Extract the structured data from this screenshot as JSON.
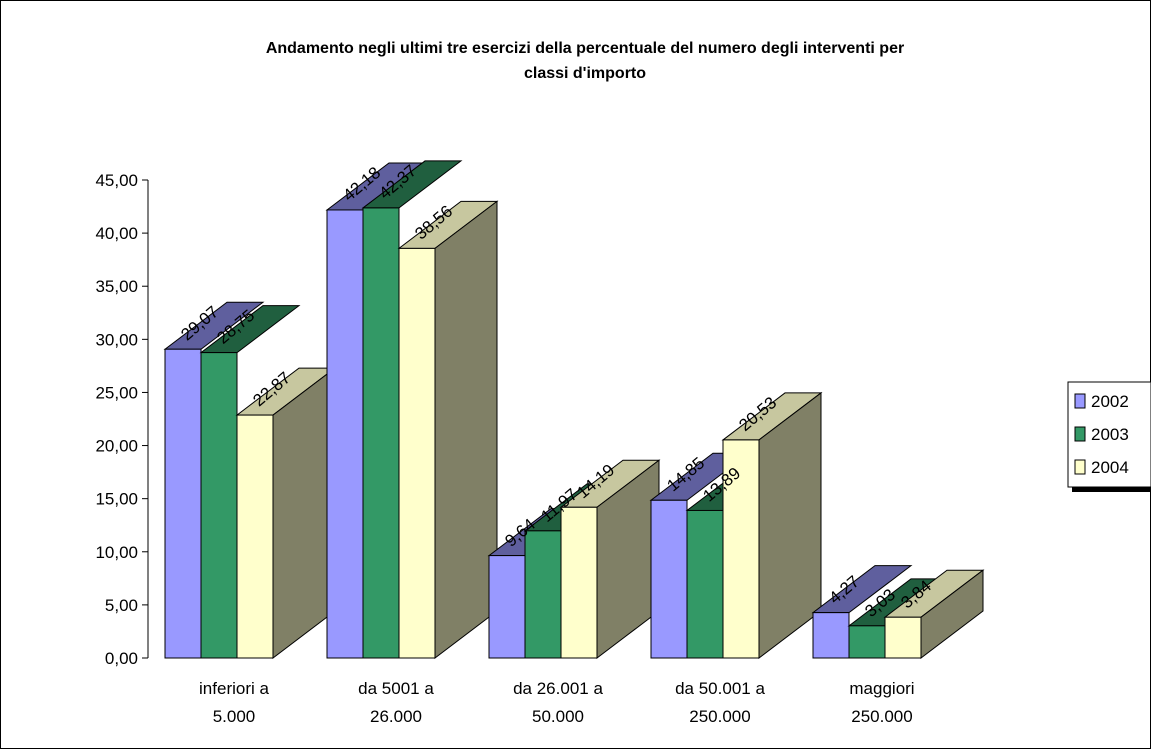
{
  "chart_data": {
    "type": "bar",
    "title_line1": "Andamento negli ultimi tre esercizi della percentuale del numero degli interventi per",
    "title_line2": "classi d'importo",
    "categories": [
      [
        "inferiori a",
        "5.000"
      ],
      [
        "da 5001 a",
        "26.000"
      ],
      [
        "da 26.001 a",
        "50.000"
      ],
      [
        "da 50.001 a",
        "250.000"
      ],
      [
        "maggiori",
        "250.000"
      ]
    ],
    "series": [
      {
        "name": "2002",
        "values": [
          29.07,
          42.18,
          9.64,
          14.85,
          4.27
        ],
        "labels": [
          "29,07",
          "42,18",
          "9,64",
          "14,85",
          "4,27"
        ],
        "color": "#9999ff"
      },
      {
        "name": "2003",
        "values": [
          28.75,
          42.37,
          11.97,
          13.89,
          3.03
        ],
        "labels": [
          "28,75",
          "42,37",
          "11,97",
          "13,89",
          "3,03"
        ],
        "color": "#339966"
      },
      {
        "name": "2004",
        "values": [
          22.87,
          38.56,
          14.19,
          20.53,
          3.84
        ],
        "labels": [
          "22,87",
          "38,56",
          "14,19",
          "20,53",
          "3,84"
        ],
        "color": "#ffffcc"
      }
    ],
    "ylim": [
      0,
      45
    ],
    "yticks": [
      0,
      5,
      10,
      15,
      20,
      25,
      30,
      35,
      40,
      45
    ],
    "ytick_labels": [
      "0,00",
      "5,00",
      "10,00",
      "15,00",
      "20,00",
      "25,00",
      "30,00",
      "35,00",
      "40,00",
      "45,00"
    ],
    "xlabel": "",
    "ylabel": "",
    "grid": false,
    "legend_position": "right",
    "style": "3d-clustered-columns"
  }
}
